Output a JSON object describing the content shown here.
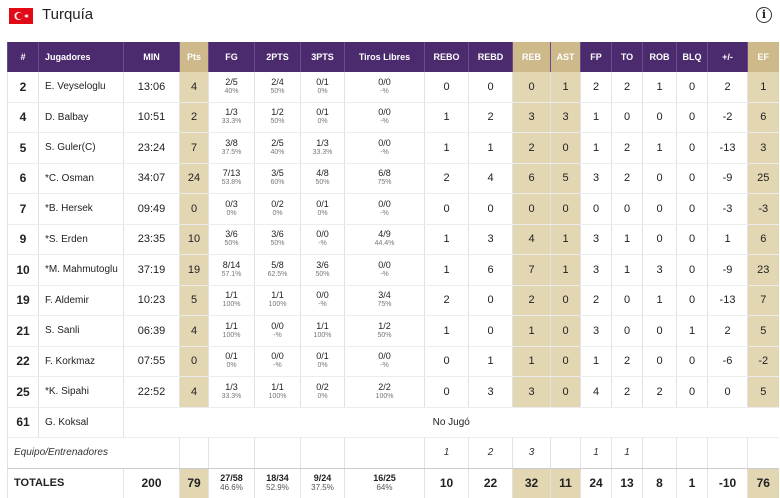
{
  "team": {
    "name": "Turquía",
    "flag_icon": "turkey-flag-icon"
  },
  "colors": {
    "header": "#4b2b6e",
    "accent_gold": "#cdb98a",
    "cell_gold": "#e3d6b2"
  },
  "columns": [
    "#",
    "Jugadores",
    "MIN",
    "Pts",
    "FG",
    "2PTS",
    "3PTS",
    "Tiros Libres",
    "REBO",
    "REBD",
    "REB",
    "AST",
    "FP",
    "TO",
    "ROB",
    "BLQ",
    "+/-",
    "EF"
  ],
  "players": [
    {
      "num": "2",
      "name": "E. Veyseloglu",
      "min": "13:06",
      "pts": "4",
      "fg": "2/5",
      "fg_pct": "40%",
      "p2": "2/4",
      "p2_pct": "50%",
      "p3": "0/1",
      "p3_pct": "0%",
      "ft": "0/0",
      "ft_pct": "-%",
      "rebo": "0",
      "rebd": "0",
      "reb": "0",
      "ast": "1",
      "fp": "2",
      "to": "2",
      "rob": "1",
      "blq": "0",
      "pm": "2",
      "ef": "1"
    },
    {
      "num": "4",
      "name": "D. Balbay",
      "min": "10:51",
      "pts": "2",
      "fg": "1/3",
      "fg_pct": "33.3%",
      "p2": "1/2",
      "p2_pct": "50%",
      "p3": "0/1",
      "p3_pct": "0%",
      "ft": "0/0",
      "ft_pct": "-%",
      "rebo": "1",
      "rebd": "2",
      "reb": "3",
      "ast": "3",
      "fp": "1",
      "to": "0",
      "rob": "0",
      "blq": "0",
      "pm": "-2",
      "ef": "6"
    },
    {
      "num": "5",
      "name": "S. Guler(C)",
      "min": "23:24",
      "pts": "7",
      "fg": "3/8",
      "fg_pct": "37.5%",
      "p2": "2/5",
      "p2_pct": "40%",
      "p3": "1/3",
      "p3_pct": "33.3%",
      "ft": "0/0",
      "ft_pct": "-%",
      "rebo": "1",
      "rebd": "1",
      "reb": "2",
      "ast": "0",
      "fp": "1",
      "to": "2",
      "rob": "1",
      "blq": "0",
      "pm": "-13",
      "ef": "3"
    },
    {
      "num": "6",
      "name": "*C. Osman",
      "min": "34:07",
      "pts": "24",
      "fg": "7/13",
      "fg_pct": "53.8%",
      "p2": "3/5",
      "p2_pct": "60%",
      "p3": "4/8",
      "p3_pct": "50%",
      "ft": "6/8",
      "ft_pct": "75%",
      "rebo": "2",
      "rebd": "4",
      "reb": "6",
      "ast": "5",
      "fp": "3",
      "to": "2",
      "rob": "0",
      "blq": "0",
      "pm": "-9",
      "ef": "25"
    },
    {
      "num": "7",
      "name": "*B. Hersek",
      "min": "09:49",
      "pts": "0",
      "fg": "0/3",
      "fg_pct": "0%",
      "p2": "0/2",
      "p2_pct": "0%",
      "p3": "0/1",
      "p3_pct": "0%",
      "ft": "0/0",
      "ft_pct": "-%",
      "rebo": "0",
      "rebd": "0",
      "reb": "0",
      "ast": "0",
      "fp": "0",
      "to": "0",
      "rob": "0",
      "blq": "0",
      "pm": "-3",
      "ef": "-3"
    },
    {
      "num": "9",
      "name": "*S. Erden",
      "min": "23:35",
      "pts": "10",
      "fg": "3/6",
      "fg_pct": "50%",
      "p2": "3/6",
      "p2_pct": "50%",
      "p3": "0/0",
      "p3_pct": "-%",
      "ft": "4/9",
      "ft_pct": "44.4%",
      "rebo": "1",
      "rebd": "3",
      "reb": "4",
      "ast": "1",
      "fp": "3",
      "to": "1",
      "rob": "0",
      "blq": "0",
      "pm": "1",
      "ef": "6"
    },
    {
      "num": "10",
      "name": "*M. Mahmutoglu",
      "min": "37:19",
      "pts": "19",
      "fg": "8/14",
      "fg_pct": "57.1%",
      "p2": "5/8",
      "p2_pct": "62.5%",
      "p3": "3/6",
      "p3_pct": "50%",
      "ft": "0/0",
      "ft_pct": "-%",
      "rebo": "1",
      "rebd": "6",
      "reb": "7",
      "ast": "1",
      "fp": "3",
      "to": "1",
      "rob": "3",
      "blq": "0",
      "pm": "-9",
      "ef": "23"
    },
    {
      "num": "19",
      "name": "F. Aldemir",
      "min": "10:23",
      "pts": "5",
      "fg": "1/1",
      "fg_pct": "100%",
      "p2": "1/1",
      "p2_pct": "100%",
      "p3": "0/0",
      "p3_pct": "-%",
      "ft": "3/4",
      "ft_pct": "75%",
      "rebo": "2",
      "rebd": "0",
      "reb": "2",
      "ast": "0",
      "fp": "2",
      "to": "0",
      "rob": "1",
      "blq": "0",
      "pm": "-13",
      "ef": "7"
    },
    {
      "num": "21",
      "name": "S. Sanli",
      "min": "06:39",
      "pts": "4",
      "fg": "1/1",
      "fg_pct": "100%",
      "p2": "0/0",
      "p2_pct": "-%",
      "p3": "1/1",
      "p3_pct": "100%",
      "ft": "1/2",
      "ft_pct": "50%",
      "rebo": "1",
      "rebd": "0",
      "reb": "1",
      "ast": "0",
      "fp": "3",
      "to": "0",
      "rob": "0",
      "blq": "1",
      "pm": "2",
      "ef": "5"
    },
    {
      "num": "22",
      "name": "F. Korkmaz",
      "min": "07:55",
      "pts": "0",
      "fg": "0/1",
      "fg_pct": "0%",
      "p2": "0/0",
      "p2_pct": "-%",
      "p3": "0/1",
      "p3_pct": "0%",
      "ft": "0/0",
      "ft_pct": "-%",
      "rebo": "0",
      "rebd": "1",
      "reb": "1",
      "ast": "0",
      "fp": "1",
      "to": "2",
      "rob": "0",
      "blq": "0",
      "pm": "-6",
      "ef": "-2"
    },
    {
      "num": "25",
      "name": "*K. Sipahi",
      "min": "22:52",
      "pts": "4",
      "fg": "1/3",
      "fg_pct": "33.3%",
      "p2": "1/1",
      "p2_pct": "100%",
      "p3": "0/2",
      "p3_pct": "0%",
      "ft": "2/2",
      "ft_pct": "100%",
      "rebo": "0",
      "rebd": "3",
      "reb": "3",
      "ast": "0",
      "fp": "4",
      "to": "2",
      "rob": "2",
      "blq": "0",
      "pm": "0",
      "ef": "5"
    }
  ],
  "did_not_play": {
    "num": "61",
    "name": "G. Koksal",
    "text": "No Jugó"
  },
  "team_row": {
    "label": "Equipo/Entrenadores",
    "rebo": "1",
    "rebd": "2",
    "reb": "3",
    "fp": "1",
    "to": "1"
  },
  "totals": {
    "label": "TOTALES",
    "min": "200",
    "pts": "79",
    "fg": "27/58",
    "fg_pct": "46.6%",
    "p2": "18/34",
    "p2_pct": "52.9%",
    "p3": "9/24",
    "p3_pct": "37.5%",
    "ft": "16/25",
    "ft_pct": "64%",
    "rebo": "10",
    "rebd": "22",
    "reb": "32",
    "ast": "11",
    "fp": "24",
    "to": "13",
    "rob": "8",
    "blq": "1",
    "pm": "-10",
    "ef": "76"
  }
}
